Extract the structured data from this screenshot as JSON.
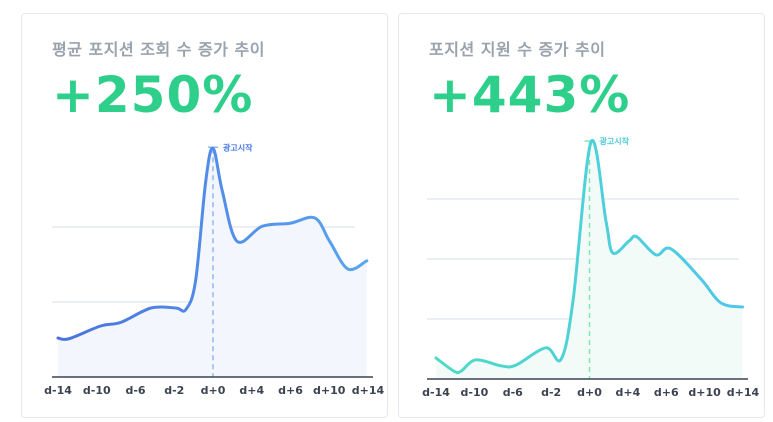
{
  "chart_data": [
    {
      "type": "area",
      "title": "평균 포지션 조회 수 증가 추이",
      "headline": "+250%",
      "categories": [
        "d-14",
        "d-10",
        "d-6",
        "d-2",
        "d+0",
        "d+4",
        "d+6",
        "d+10",
        "d+14"
      ],
      "annotation": {
        "label": "광고시작",
        "at": "d+0"
      },
      "grid": true,
      "ylim": [
        0,
        3.2
      ],
      "colors": {
        "line_start": "#4a72df",
        "line_end": "#5aa6f0",
        "fill": "#f3f6fd",
        "marker": "#8fb8f5",
        "annotation": "#4a7be6"
      },
      "series": [
        {
          "x": [
            0,
            0.28,
            1.1,
            1.63,
            2.4,
            3.04,
            3.3,
            3.55,
            3.81,
            4.0,
            4.24,
            4.62,
            5.27,
            5.99,
            6.63,
            7.01,
            7.48,
            7.97
          ],
          "y": [
            0.52,
            0.51,
            0.68,
            0.73,
            0.92,
            0.92,
            0.9,
            1.28,
            2.6,
            3.05,
            2.48,
            1.81,
            2.01,
            2.05,
            2.12,
            1.81,
            1.44,
            1.55
          ]
        }
      ]
    },
    {
      "type": "area",
      "title": "포지션 지원 수 증가 추이",
      "headline": "+443%",
      "categories": [
        "d-14",
        "d-10",
        "d-6",
        "d-2",
        "d+0",
        "d+4",
        "d+6",
        "d+10",
        "d+14"
      ],
      "annotation": {
        "label": "광고시작",
        "at": "d+0"
      },
      "grid": true,
      "ylim": [
        0,
        4.2
      ],
      "colors": {
        "line_start": "#4edbc4",
        "line_end": "#4fc6ec",
        "fill": "#f3fbf9",
        "marker": "#7ee8b8",
        "annotation": "#4cc9d8"
      },
      "series": [
        {
          "x": [
            0,
            0.47,
            0.65,
            1.04,
            1.69,
            2.08,
            2.86,
            3.26,
            3.57,
            4.04,
            4.43,
            4.61,
            5.03,
            5.23,
            5.73,
            6.12,
            6.9,
            7.42,
            7.99
          ],
          "y": [
            0.35,
            0.13,
            0.13,
            0.32,
            0.22,
            0.23,
            0.52,
            0.33,
            1.3,
            3.95,
            2.63,
            2.1,
            2.3,
            2.37,
            2.07,
            2.17,
            1.67,
            1.27,
            1.2
          ]
        }
      ]
    }
  ]
}
